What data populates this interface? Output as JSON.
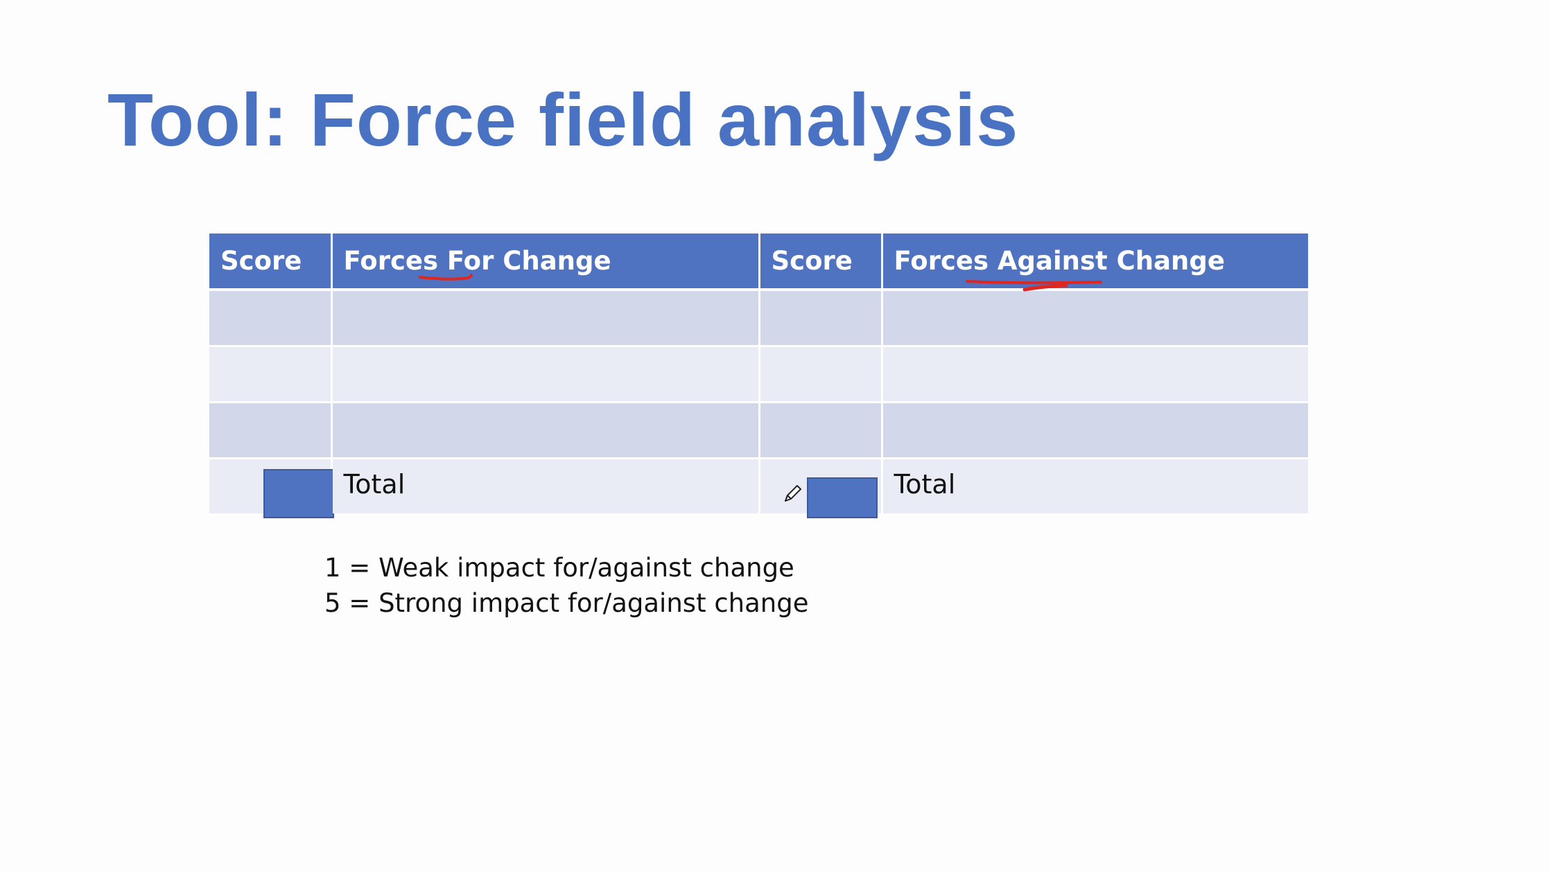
{
  "slide": {
    "title": "Tool: Force field analysis"
  },
  "table": {
    "headers": [
      "Score",
      "Forces For Change",
      "Score",
      "Forces Against Change"
    ],
    "rows": [
      [
        "",
        "",
        "",
        ""
      ],
      [
        "",
        "",
        "",
        ""
      ],
      [
        "",
        "",
        "",
        ""
      ]
    ],
    "total_label_left": "Total",
    "total_label_right": "Total"
  },
  "legend": {
    "line1": "1 = Weak impact for/against change",
    "line2": "5 = Strong impact for/against change"
  },
  "icons": {
    "cursor": "pencil-icon"
  },
  "colors": {
    "title": "#4a72c2",
    "header_bg": "#4f73c1",
    "row_dark": "#d2d8ea",
    "row_light": "#e9ecf5",
    "annotation": "#e0261f"
  }
}
